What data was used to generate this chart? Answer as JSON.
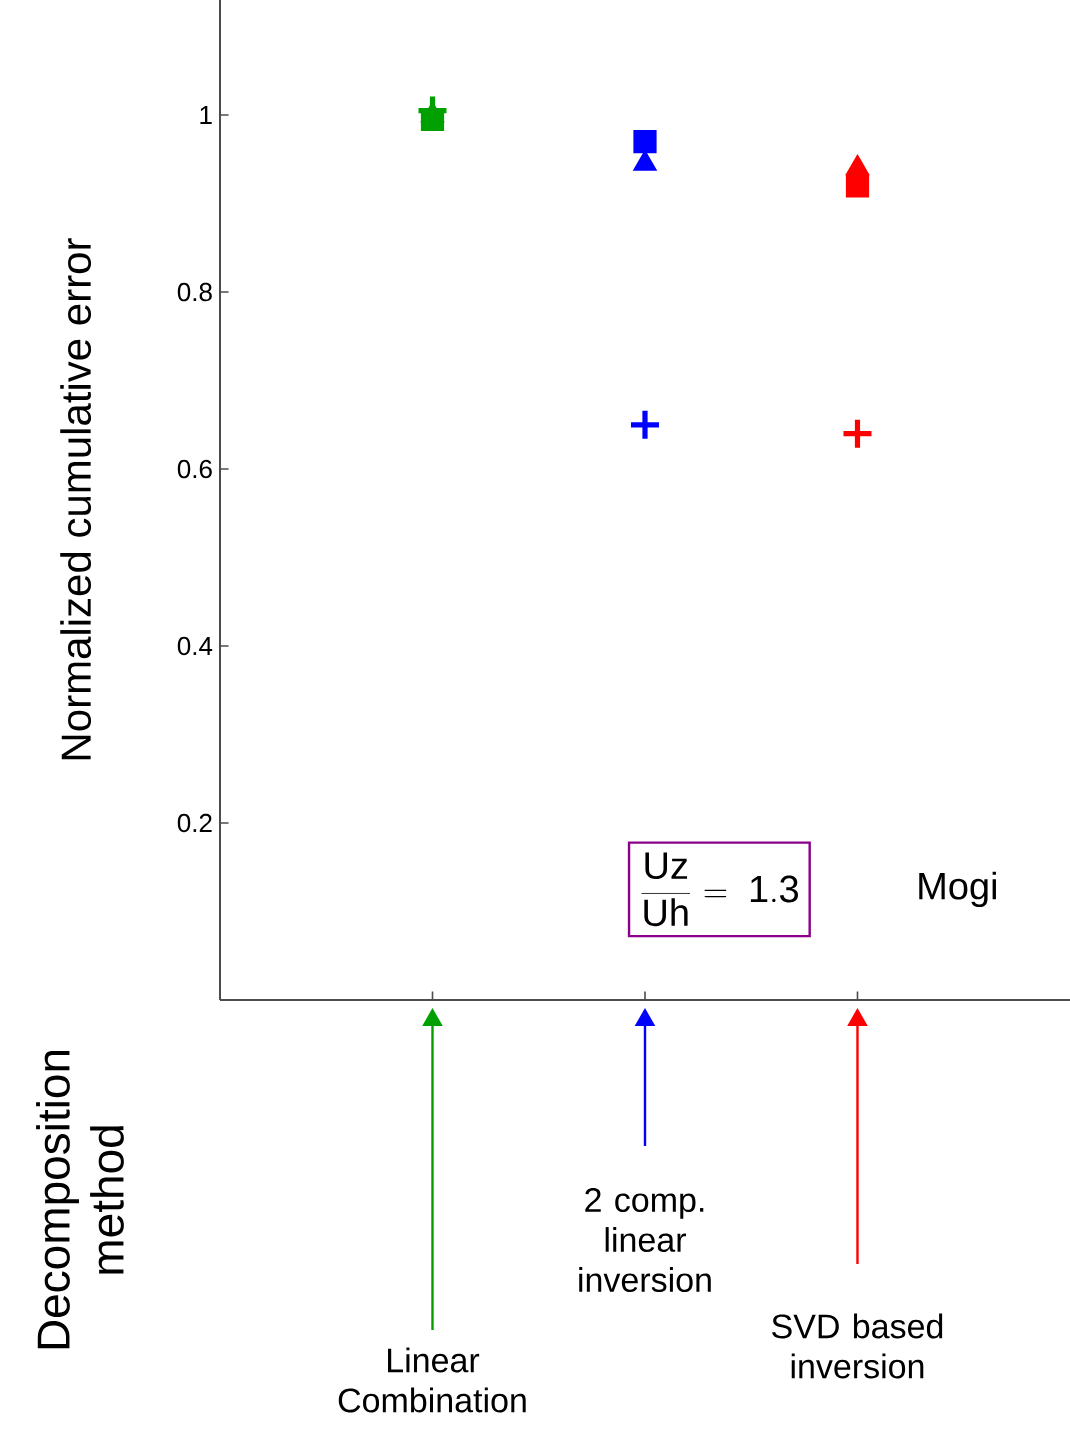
{
  "chart_data": {
    "type": "scatter",
    "ylabel": "Normalized cumulative error",
    "categories": [
      null,
      null,
      null
    ],
    "ylim": [
      0,
      1.13
    ],
    "yticks": [
      0.2,
      0.4,
      0.6,
      0.8,
      1
    ],
    "grid": false,
    "series": [
      {
        "marker": "square",
        "colors": [
          "#00a000",
          "#0000ff",
          "#ff0000"
        ],
        "values": [
          0.995,
          0.97,
          0.92
        ]
      },
      {
        "marker": "triangle",
        "colors": [
          "#00a000",
          "#0000ff",
          "#ff0000"
        ],
        "values": [
          1.0,
          0.945,
          0.94
        ]
      },
      {
        "marker": "cross",
        "colors": [
          "#00a000",
          "#0000ff",
          "#ff0000"
        ],
        "values": [
          1.005,
          0.65,
          0.64
        ]
      }
    ],
    "annotations": [
      "\\frac{\\mathrm{Uz}}{\\mathrm{Uh}}\\mathrm{\\ =\\ 1.3}",
      "Mogi",
      "Decomposition method",
      "Linear Combination",
      "2 comp. linear inversion",
      "SVD based inversion"
    ]
  }
}
